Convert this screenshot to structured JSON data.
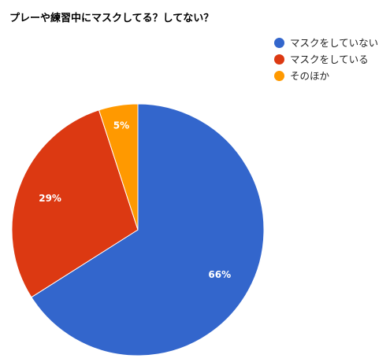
{
  "chart_data": {
    "type": "pie",
    "title": "プレーや練習中にマスクしてる？してない？",
    "legend_position": "right",
    "categories": [
      "マスクをしていない",
      "マスクをしている",
      "そのほか"
    ],
    "values": [
      66,
      29,
      5
    ],
    "labels": [
      "66%",
      "29%",
      "5%"
    ],
    "colors": [
      "#3366cc",
      "#dc3912",
      "#ff9900"
    ],
    "start_angle_deg": 0,
    "direction": "clockwise"
  }
}
